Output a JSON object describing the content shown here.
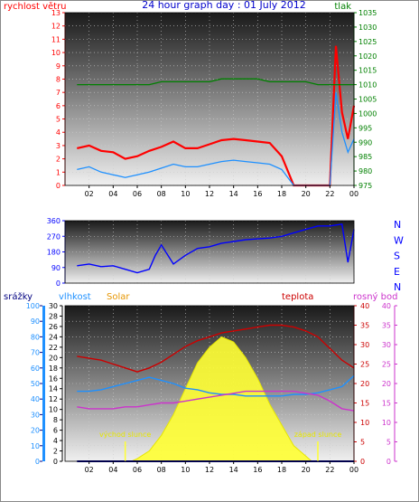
{
  "title": "24 hour graph day : 01 July 2012",
  "colors": {
    "wind": "#ff0000",
    "gust": "#1e90ff",
    "pressure": "#008000",
    "direction": "#0000ff",
    "rain": "#000080",
    "humidity": "#1e90ff",
    "solar": "#ffff33",
    "temperature": "#cc0000",
    "dewpoint": "#cc33cc"
  },
  "chart_data": [
    {
      "type": "line",
      "title": "24 hour graph day : 01 July 2012",
      "x_ticks": [
        "02",
        "04",
        "06",
        "08",
        "10",
        "12",
        "14",
        "16",
        "18",
        "20",
        "22",
        "00"
      ],
      "left_axis": {
        "label": "rychlost větru",
        "ylim": [
          0,
          13
        ],
        "ticks": [
          0,
          1,
          2,
          3,
          4,
          5,
          6,
          7,
          8,
          9,
          10,
          11,
          12,
          13
        ]
      },
      "right_axis": {
        "label": "tlak",
        "ylim": [
          975,
          1035
        ],
        "ticks": [
          975,
          980,
          985,
          990,
          995,
          1000,
          1005,
          1010,
          1015,
          1020,
          1025,
          1030,
          1035
        ]
      },
      "series": [
        {
          "name": "rychlost větru",
          "axis": "left",
          "x": [
            1,
            2,
            3,
            4,
            5,
            6,
            7,
            8,
            9,
            10,
            11,
            12,
            13,
            14,
            15,
            16,
            17,
            18,
            19,
            20,
            21,
            22,
            22.5,
            23,
            23.5,
            24
          ],
          "values": [
            2.8,
            3.0,
            2.6,
            2.5,
            2.0,
            2.2,
            2.6,
            2.9,
            3.3,
            2.8,
            2.8,
            3.1,
            3.4,
            3.5,
            3.4,
            3.3,
            3.2,
            2.2,
            0.0,
            0.0,
            0.0,
            0.0,
            10.5,
            5.5,
            3.5,
            6.0
          ]
        },
        {
          "name": "",
          "axis": "left",
          "x": [
            1,
            2,
            3,
            4,
            5,
            6,
            7,
            8,
            9,
            10,
            11,
            12,
            13,
            14,
            15,
            16,
            17,
            18,
            19,
            20,
            21,
            22,
            22.5,
            23,
            23.5,
            24
          ],
          "values": [
            1.2,
            1.4,
            1.0,
            0.8,
            0.6,
            0.8,
            1.0,
            1.3,
            1.6,
            1.4,
            1.4,
            1.6,
            1.8,
            1.9,
            1.8,
            1.7,
            1.6,
            1.2,
            0.0,
            0.0,
            0.0,
            0.0,
            7.0,
            4.0,
            2.5,
            3.5
          ]
        },
        {
          "name": "tlak",
          "axis": "right",
          "x": [
            1,
            3,
            5,
            7,
            8,
            9,
            10,
            11,
            12,
            13,
            14,
            15,
            16,
            17,
            18,
            19,
            20,
            21,
            22,
            23,
            24
          ],
          "values": [
            1010,
            1010,
            1010,
            1010,
            1011,
            1011,
            1011,
            1011,
            1011,
            1012,
            1012,
            1012,
            1012,
            1011,
            1011,
            1011,
            1011,
            1010,
            1010,
            1010,
            1010
          ]
        }
      ]
    },
    {
      "type": "line",
      "x_ticks": [
        "02",
        "04",
        "06",
        "08",
        "10",
        "12",
        "14",
        "16",
        "18",
        "20",
        "22",
        "00"
      ],
      "left_axis": {
        "ylim": [
          0,
          360
        ],
        "ticks": [
          0,
          90,
          180,
          270,
          360
        ]
      },
      "right_axis": {
        "labels": [
          "N",
          "W",
          "S",
          "E",
          "N"
        ]
      },
      "series": [
        {
          "name": "",
          "x": [
            1,
            2,
            3,
            4,
            5,
            6,
            7,
            7.5,
            8,
            9,
            10,
            11,
            12,
            13,
            14,
            15,
            16,
            17,
            18,
            19,
            20,
            21,
            22,
            23,
            23.5,
            24
          ],
          "values": [
            100,
            110,
            95,
            100,
            80,
            60,
            80,
            160,
            220,
            110,
            160,
            200,
            210,
            230,
            240,
            250,
            255,
            260,
            270,
            290,
            310,
            330,
            330,
            340,
            120,
            310
          ]
        }
      ]
    },
    {
      "type": "line",
      "x_ticks": [
        "02",
        "04",
        "06",
        "08",
        "10",
        "12",
        "14",
        "16",
        "18",
        "20",
        "22",
        "00"
      ],
      "axes": [
        {
          "label": "srážky",
          "ylim": [
            0,
            10
          ],
          "ticks": [
            0,
            1,
            2,
            3,
            4,
            5,
            6,
            7,
            8,
            9,
            10
          ]
        },
        {
          "label": "vlhkost",
          "ylim": [
            0,
            100
          ],
          "ticks": [
            0,
            10,
            20,
            30,
            40,
            50,
            60,
            70,
            80,
            90,
            100
          ]
        },
        {
          "label": "Solar",
          "ylim": [
            0,
            30
          ],
          "ticks": [
            0,
            2,
            4,
            6,
            8,
            10,
            12,
            14,
            16,
            18,
            20,
            22,
            24,
            26,
            28,
            30
          ]
        },
        {
          "label": "teplota",
          "ylim": [
            0,
            40
          ],
          "ticks": [
            0,
            5,
            10,
            15,
            20,
            25,
            30,
            35,
            40
          ]
        },
        {
          "label": "rosný bod",
          "ylim": [
            0,
            40
          ],
          "ticks": [
            0,
            5,
            10,
            15,
            20,
            25,
            30,
            35,
            40
          ]
        }
      ],
      "annotations": [
        {
          "text": "východ slunce",
          "x": 5.0
        },
        {
          "text": "západ slunce",
          "x": 21.0
        }
      ],
      "series": [
        {
          "name": "Solar",
          "axis": "Solar",
          "x": [
            5.5,
            6,
            7,
            8,
            9,
            10,
            11,
            12,
            13,
            14,
            15,
            16,
            17,
            18,
            19,
            20,
            20.5
          ],
          "values": [
            0,
            0.5,
            2,
            5,
            9,
            14,
            19,
            22,
            24,
            23,
            20,
            16,
            11,
            7,
            3,
            1,
            0
          ]
        },
        {
          "name": "vlhkost",
          "axis": "vlhkost",
          "x": [
            1,
            2,
            3,
            4,
            5,
            6,
            7,
            8,
            9,
            10,
            11,
            12,
            13,
            14,
            15,
            16,
            17,
            18,
            19,
            20,
            21,
            22,
            23,
            24
          ],
          "values": [
            45,
            45,
            46,
            48,
            50,
            52,
            54,
            52,
            50,
            47,
            46,
            44,
            43,
            43,
            42,
            42,
            42,
            42,
            43,
            43,
            44,
            46,
            48,
            55
          ]
        },
        {
          "name": "teplota",
          "axis": "teplota",
          "x": [
            1,
            2,
            3,
            4,
            5,
            6,
            7,
            8,
            9,
            10,
            11,
            12,
            13,
            14,
            15,
            16,
            17,
            18,
            19,
            20,
            21,
            22,
            23,
            24
          ],
          "values": [
            27,
            26.5,
            26,
            25,
            24,
            23,
            24,
            25.5,
            27.5,
            29.5,
            31,
            32,
            33,
            33.5,
            34,
            34.5,
            35,
            35,
            34.5,
            33.5,
            32,
            29,
            26,
            24
          ]
        },
        {
          "name": "rosný bod",
          "axis": "rosný bod",
          "x": [
            1,
            2,
            3,
            4,
            5,
            6,
            7,
            8,
            9,
            10,
            11,
            12,
            13,
            14,
            15,
            16,
            17,
            18,
            19,
            20,
            21,
            22,
            23,
            24
          ],
          "values": [
            14,
            13.5,
            13.5,
            13.5,
            14,
            14,
            14.5,
            15,
            15,
            15.5,
            16,
            16.5,
            17,
            17.5,
            18,
            18,
            18,
            18,
            18,
            17.5,
            17,
            15.5,
            13.5,
            13
          ]
        },
        {
          "name": "srážky",
          "axis": "srážky",
          "x": [
            1,
            24
          ],
          "values": [
            0,
            0
          ]
        }
      ]
    }
  ]
}
